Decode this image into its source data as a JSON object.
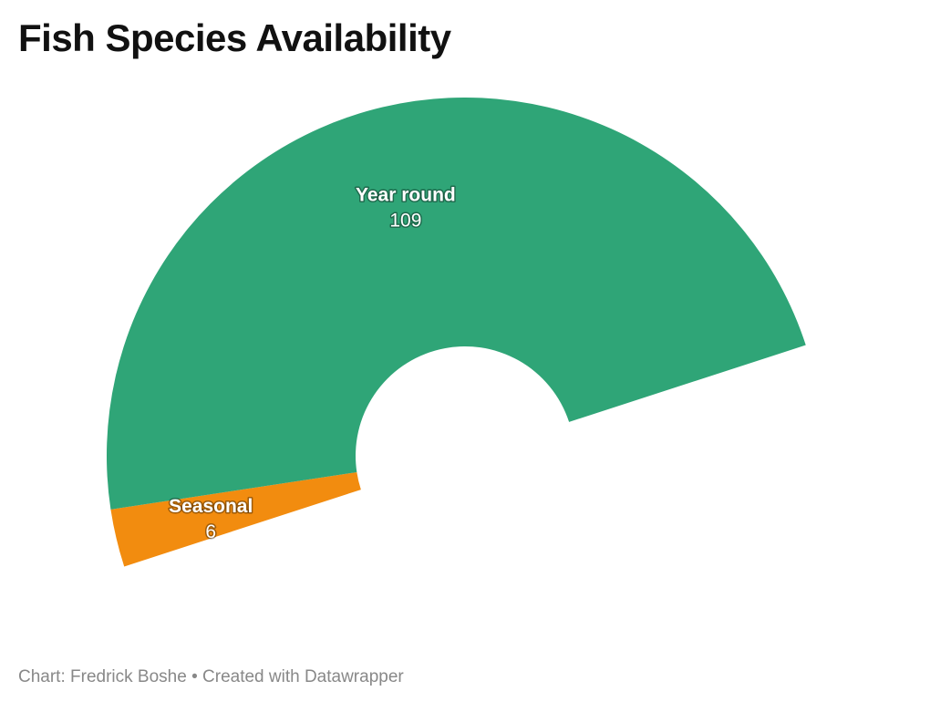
{
  "chart_data": {
    "type": "pie",
    "variant": "half-donut",
    "title": "Fish Species Availability",
    "slices": [
      {
        "label": "Seasonal",
        "value": 6,
        "color": "#f28c0f"
      },
      {
        "label": "Year round",
        "value": 109,
        "color": "#2fa577"
      }
    ],
    "data_labels": "inside"
  },
  "footer": {
    "chart_credit": "Chart: Fredrick Boshe",
    "separator": "•",
    "tool_credit": "Created with Datawrapper"
  }
}
